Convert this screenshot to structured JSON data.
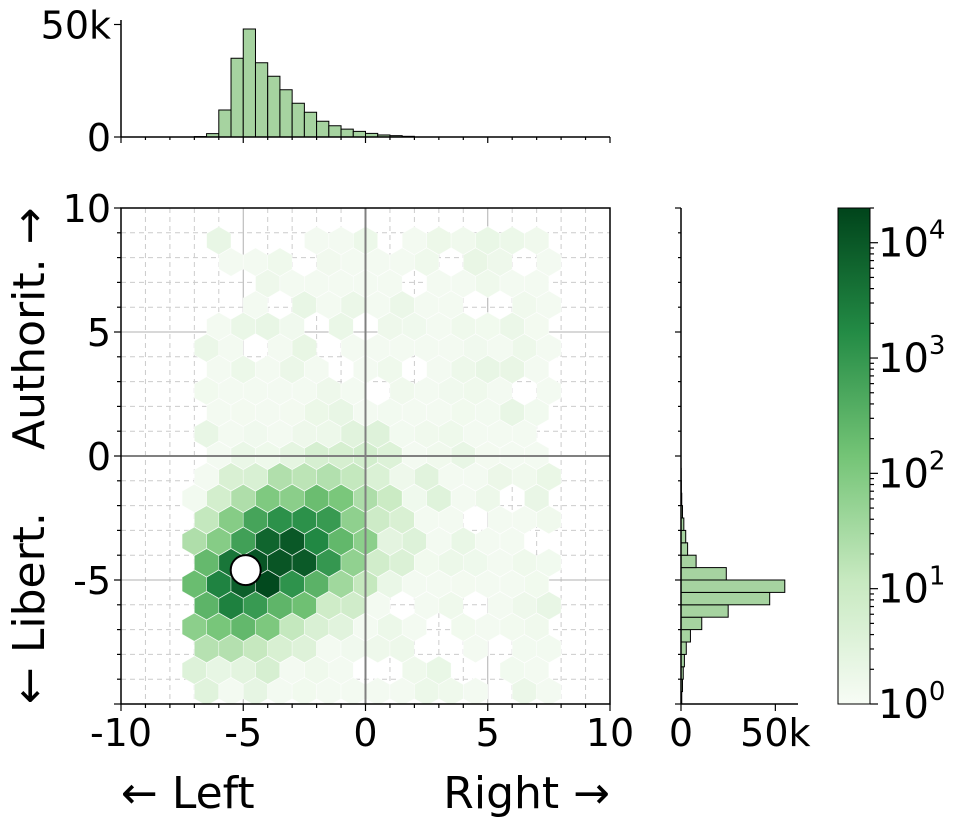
{
  "chart_data": {
    "type": "hexbin",
    "title": "",
    "xlabel": "← Left                Right →",
    "ylabel": "← Libert.             Authorit. →",
    "xlim": [
      -10,
      10
    ],
    "ylim": [
      -10,
      10
    ],
    "grid": true,
    "reference_lines": {
      "x": 0,
      "y": 0
    },
    "x_ticks": [
      {
        "value": -10,
        "label": "-10"
      },
      {
        "value": -5,
        "label": "-5"
      },
      {
        "value": 0,
        "label": "0"
      },
      {
        "value": 5,
        "label": "5"
      },
      {
        "value": 10,
        "label": "10"
      }
    ],
    "y_ticks": [
      {
        "value": 10,
        "label": "10"
      },
      {
        "value": 5,
        "label": "5"
      },
      {
        "value": 0,
        "label": "0"
      },
      {
        "value": -5,
        "label": "-5"
      }
    ],
    "y_bottom_label": {
      "value": -10,
      "label": "-10"
    },
    "highlight_point": {
      "x": -4.9,
      "y": -4.6,
      "color": "#ffffff"
    },
    "colorbar": {
      "scale": "log",
      "range": [
        1,
        20000
      ],
      "colormap": [
        "#f7fcf5",
        "#c7e9c0",
        "#74c476",
        "#238b45",
        "#00441b"
      ],
      "ticks": [
        {
          "value": 1,
          "base": "10",
          "exp": "0"
        },
        {
          "value": 10,
          "base": "10",
          "exp": "1"
        },
        {
          "value": 100,
          "base": "10",
          "exp": "2"
        },
        {
          "value": 1000,
          "base": "10",
          "exp": "3"
        },
        {
          "value": 10000,
          "base": "10",
          "exp": "4"
        }
      ]
    },
    "hexbin_density": {
      "peak": {
        "x": -3.8,
        "y": -4.3,
        "count": 20000
      },
      "extent": {
        "x": [
          -7.5,
          7.5
        ],
        "y": [
          -9.5,
          9.2
        ]
      }
    },
    "marginal_x": {
      "type": "histogram",
      "bin_width": 0.5,
      "range": [
        -10,
        10
      ],
      "ylim": [
        0,
        52000
      ],
      "tick_labels": [
        {
          "value": 50000,
          "label": "50k"
        },
        {
          "value": 0,
          "label": "0"
        }
      ],
      "bins": [
        {
          "x": -6.5,
          "count": 200
        },
        {
          "x": -6.0,
          "count": 1500
        },
        {
          "x": -5.5,
          "count": 12000
        },
        {
          "x": -5.0,
          "count": 35000
        },
        {
          "x": -4.5,
          "count": 48000
        },
        {
          "x": -4.0,
          "count": 33000
        },
        {
          "x": -3.5,
          "count": 27000
        },
        {
          "x": -3.0,
          "count": 21000
        },
        {
          "x": -2.5,
          "count": 15000
        },
        {
          "x": -2.0,
          "count": 11000
        },
        {
          "x": -1.5,
          "count": 7000
        },
        {
          "x": -1.0,
          "count": 5000
        },
        {
          "x": -0.5,
          "count": 3500
        },
        {
          "x": 0.0,
          "count": 2500
        },
        {
          "x": 0.5,
          "count": 1600
        },
        {
          "x": 1.0,
          "count": 900
        },
        {
          "x": 1.5,
          "count": 600
        },
        {
          "x": 2.0,
          "count": 300
        }
      ]
    },
    "marginal_y": {
      "type": "histogram",
      "bin_width": 0.5,
      "range": [
        -10,
        10
      ],
      "xlim": [
        0,
        62000
      ],
      "tick_labels": [
        {
          "value": 0,
          "label": "0"
        },
        {
          "value": 50000,
          "label": "50k"
        }
      ],
      "bins": [
        {
          "y": -9.5,
          "count": 400
        },
        {
          "y": -9.0,
          "count": 800
        },
        {
          "y": -8.5,
          "count": 1200
        },
        {
          "y": -8.0,
          "count": 1800
        },
        {
          "y": -7.5,
          "count": 2800
        },
        {
          "y": -7.0,
          "count": 5000
        },
        {
          "y": -6.5,
          "count": 11000
        },
        {
          "y": -6.0,
          "count": 25000
        },
        {
          "y": -5.5,
          "count": 47000
        },
        {
          "y": -5.0,
          "count": 55000
        },
        {
          "y": -4.5,
          "count": 24000
        },
        {
          "y": -4.0,
          "count": 8000
        },
        {
          "y": -3.5,
          "count": 3500
        },
        {
          "y": -3.0,
          "count": 2500
        },
        {
          "y": -2.5,
          "count": 1500
        },
        {
          "y": -2.0,
          "count": 800
        },
        {
          "y": -1.5,
          "count": 400
        },
        {
          "y": -1.0,
          "count": 200
        },
        {
          "y": -0.5,
          "count": 100
        }
      ]
    }
  }
}
